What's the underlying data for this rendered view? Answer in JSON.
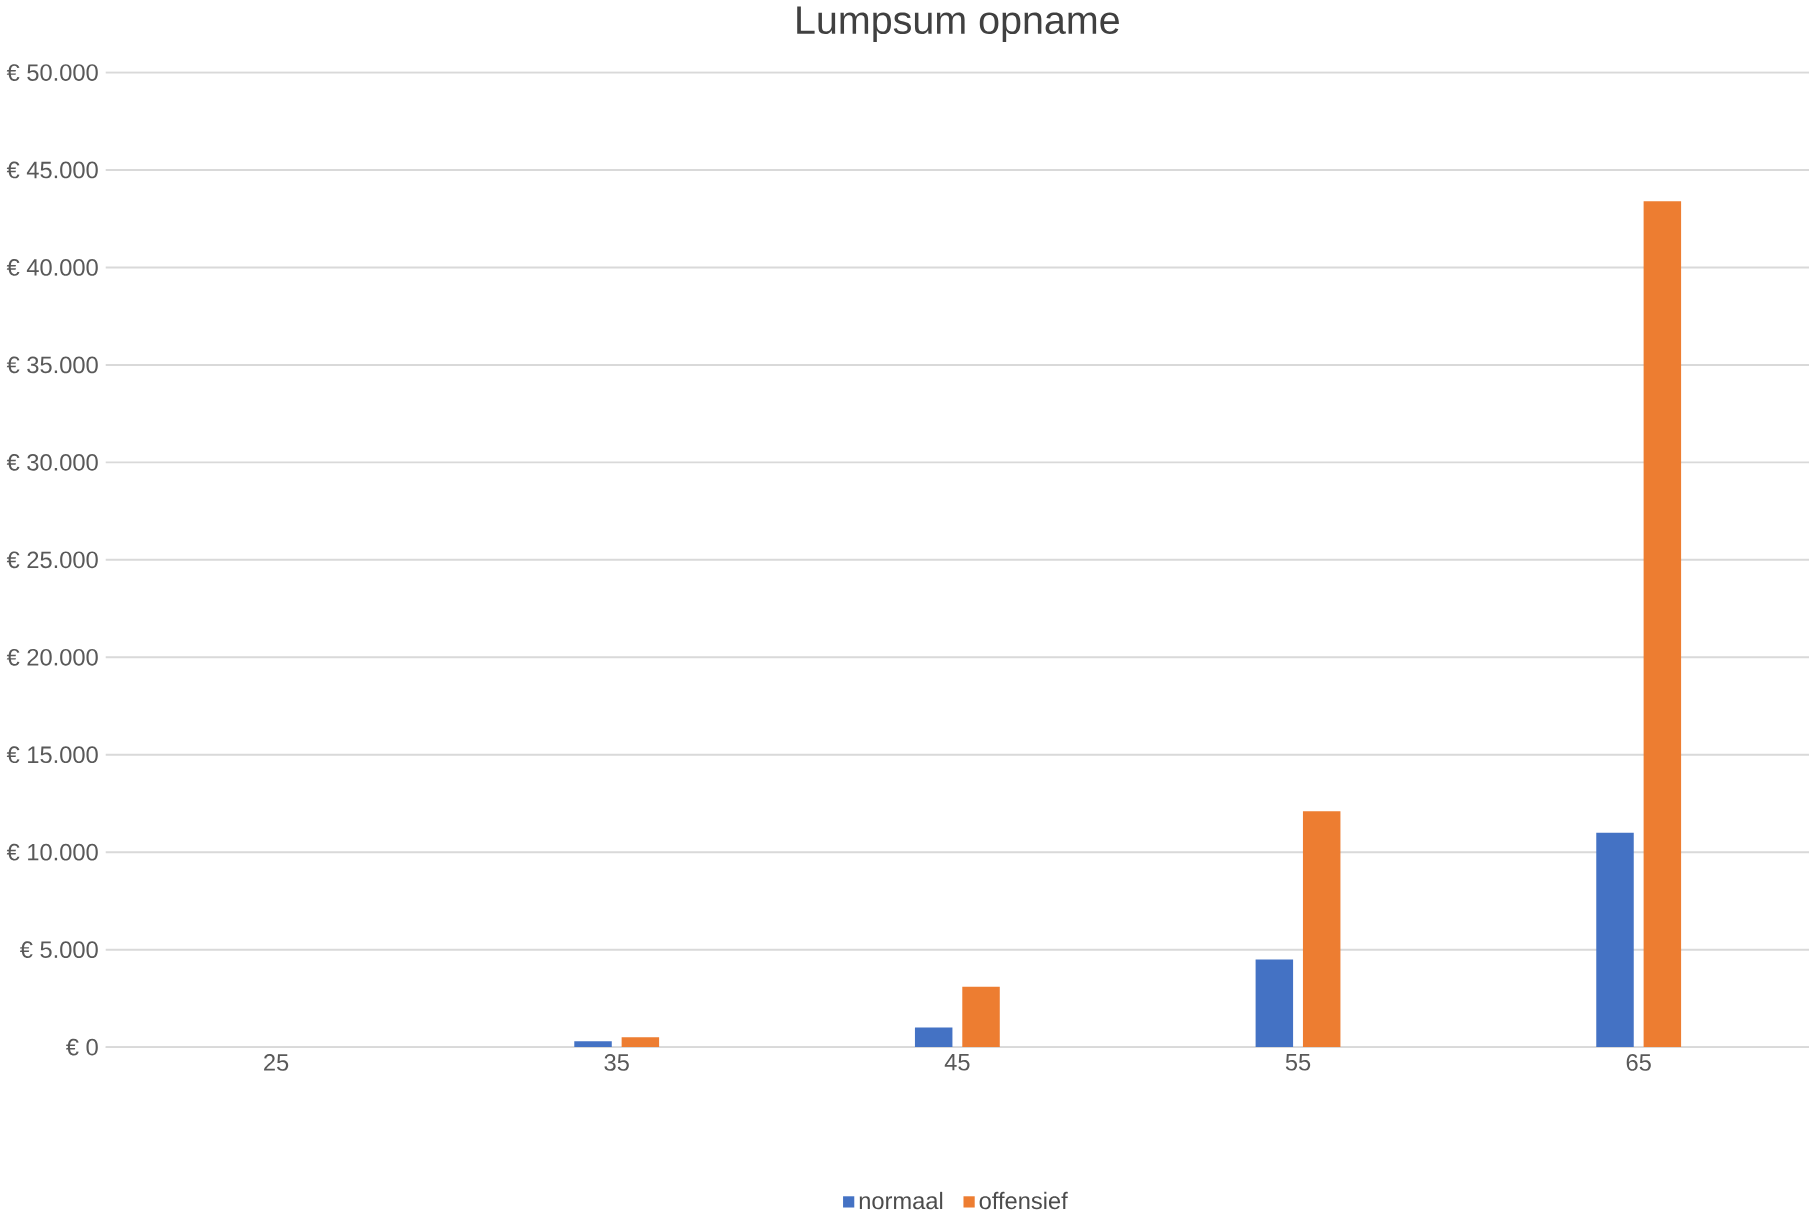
{
  "chart_data": {
    "type": "bar",
    "title": "Lumpsum opname",
    "categories": [
      "25",
      "35",
      "45",
      "55",
      "65"
    ],
    "series": [
      {
        "name": "normaal",
        "color": "#4472c4",
        "values": [
          0,
          300,
          1000,
          4500,
          11000
        ]
      },
      {
        "name": "offensief",
        "color": "#ed7d31",
        "values": [
          0,
          500,
          3100,
          12100,
          43400
        ]
      }
    ],
    "ylim": [
      0,
      50000
    ],
    "yticks": [
      {
        "value": 0,
        "label": "€ 0"
      },
      {
        "value": 5000,
        "label": "€ 5.000"
      },
      {
        "value": 10000,
        "label": "€ 10.000"
      },
      {
        "value": 15000,
        "label": "€ 15.000"
      },
      {
        "value": 20000,
        "label": "€ 20.000"
      },
      {
        "value": 25000,
        "label": "€ 25.000"
      },
      {
        "value": 30000,
        "label": "€ 30.000"
      },
      {
        "value": 35000,
        "label": "€ 35.000"
      },
      {
        "value": 40000,
        "label": "€ 40.000"
      },
      {
        "value": 45000,
        "label": "€ 45.000"
      },
      {
        "value": 50000,
        "label": "€ 50.000"
      }
    ],
    "grid": "y",
    "legend": "bottom"
  }
}
